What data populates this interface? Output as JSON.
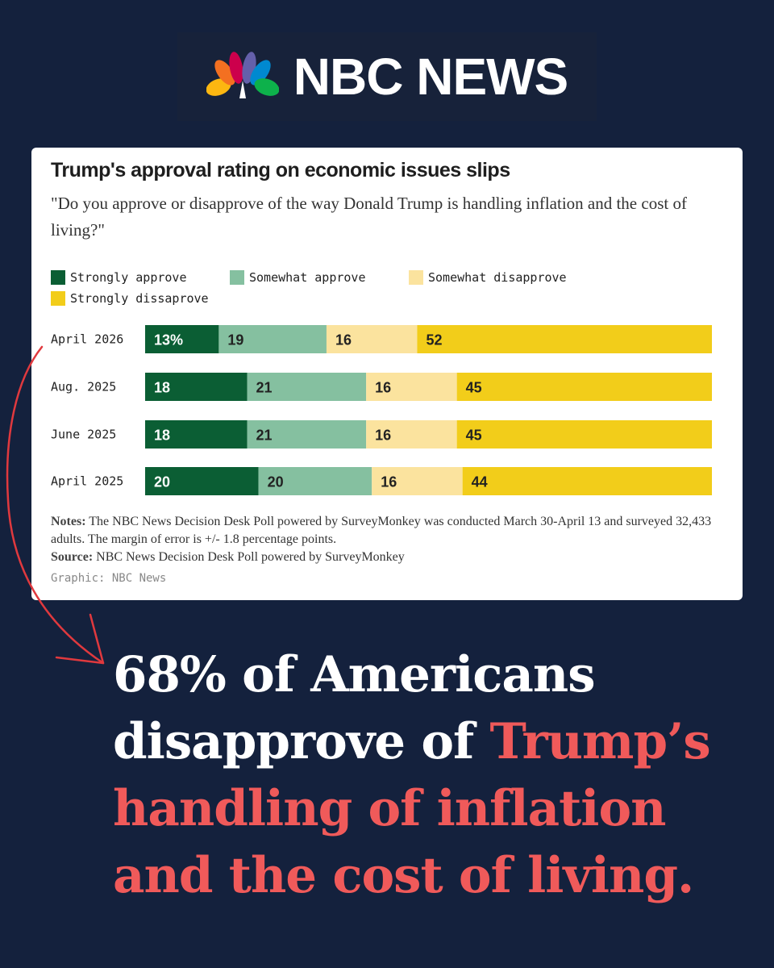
{
  "brand": {
    "name": "NBC NEWS"
  },
  "chart_data": {
    "type": "bar",
    "stacked": true,
    "orientation": "horizontal",
    "title": "Trump's approval rating on economic issues slips",
    "subtitle": "\"Do you approve or disapprove of the way Donald Trump is handling inflation and the cost of living?\"",
    "categories": [
      "April 2026",
      "Aug. 2025",
      "June 2025",
      "April 2025"
    ],
    "series": [
      {
        "name": "Strongly approve",
        "color": "#0b5e34",
        "values": [
          13,
          18,
          18,
          20
        ],
        "labels": [
          "13%",
          "18",
          "18",
          "20"
        ]
      },
      {
        "name": "Somewhat approve",
        "color": "#85c0a0",
        "values": [
          19,
          21,
          21,
          20
        ],
        "labels": [
          "19",
          "21",
          "21",
          "20"
        ]
      },
      {
        "name": "Somewhat disapprove",
        "color": "#fbe39e",
        "values": [
          16,
          16,
          16,
          16
        ],
        "labels": [
          "16",
          "16",
          "16",
          "16"
        ]
      },
      {
        "name": "Strongly dissaprove",
        "color": "#f2cd1a",
        "values": [
          52,
          45,
          45,
          44
        ],
        "labels": [
          "52",
          "45",
          "45",
          "44"
        ]
      }
    ],
    "xlim": [
      0,
      100
    ],
    "notes_label": "Notes:",
    "notes": "The NBC News Decision Desk Poll powered by SurveyMonkey was conducted March 30-April 13 and surveyed 32,433 adults. The margin of error is +/- 1.8 percentage points.",
    "source_label": "Source:",
    "source": "NBC News Decision Desk Poll powered by SurveyMonkey",
    "graphic_credit": "Graphic: NBC News"
  },
  "headline": {
    "part1": "68% of Americans disapprove of ",
    "part2": "Trump’s handling of inflation and the cost of living."
  },
  "colors": {
    "background": "#14213d",
    "accent": "#f05a5a"
  }
}
